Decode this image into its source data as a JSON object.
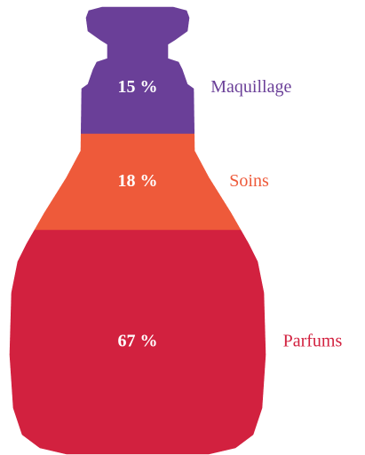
{
  "chart_data": {
    "type": "bottle",
    "categories": [
      "Maquillage",
      "Soins",
      "Parfums"
    ],
    "values": [
      15,
      18,
      67
    ],
    "value_labels": [
      "15 %",
      "18 %",
      "67 %"
    ],
    "colors": [
      "#6a3f98",
      "#ee5a3a",
      "#d2213f"
    ]
  }
}
